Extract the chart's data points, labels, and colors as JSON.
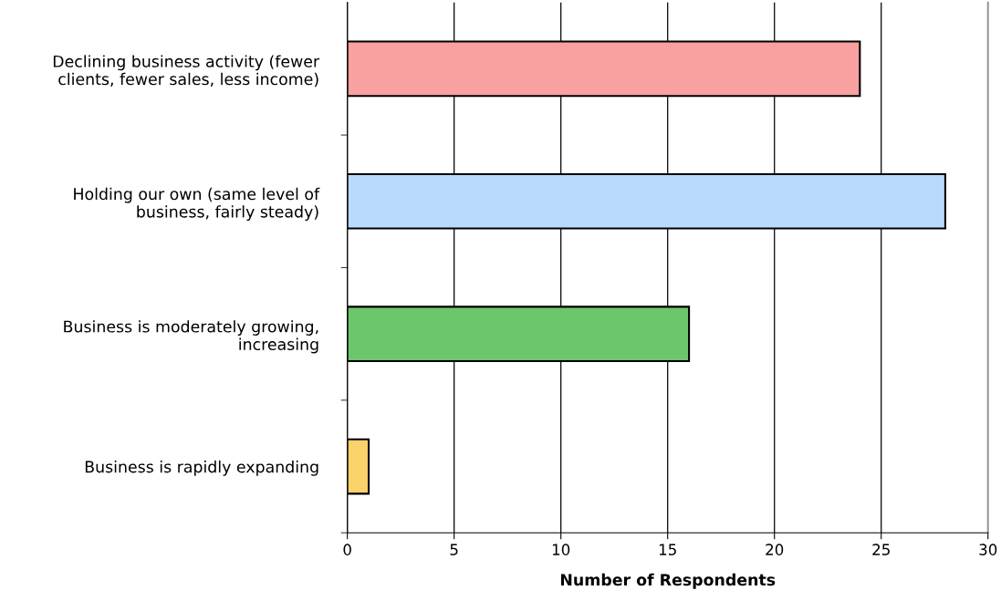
{
  "chart_data": {
    "type": "bar",
    "orientation": "horizontal",
    "xlabel": "Number of Respondents",
    "categories": [
      "Declining business activity (fewer\nclients, fewer sales, less income)",
      "Holding our own (same level of\nbusiness, fairly steady)",
      "Business is moderately growing,\nincreasing",
      "Business is rapidly expanding"
    ],
    "values": [
      24,
      28,
      16,
      1
    ],
    "colors": [
      "#f9a0a0",
      "#b9dafc",
      "#6cc66c",
      "#f9d36a"
    ],
    "xlim": [
      0,
      30
    ],
    "xticks": [
      0,
      5,
      10,
      15,
      20,
      25,
      30
    ],
    "grid": "x",
    "legend": false
  }
}
